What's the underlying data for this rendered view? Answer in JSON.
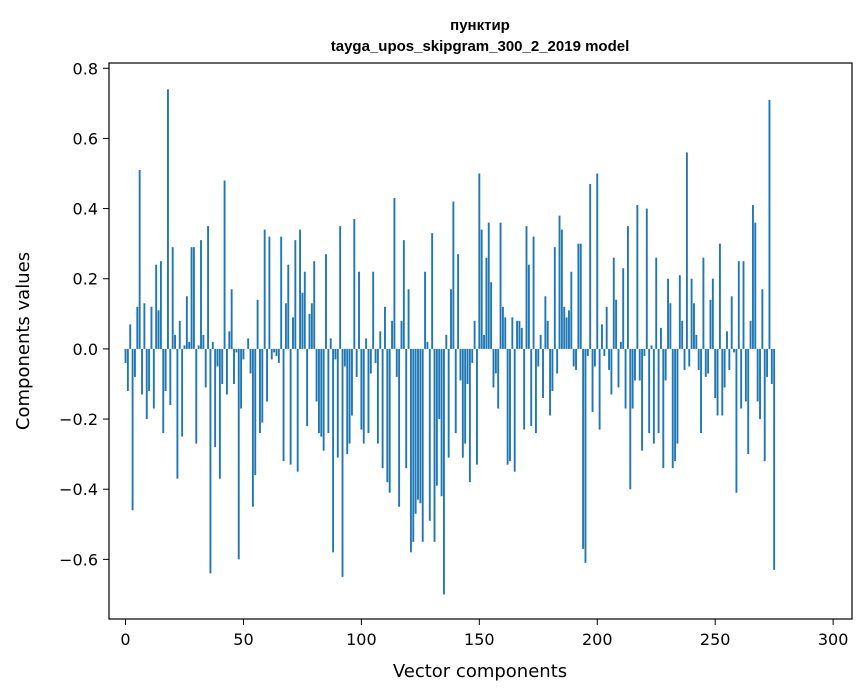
{
  "chart_data": {
    "type": "bar",
    "title": "пунктир",
    "subtitle": "tayga_upos_skipgram_300_2_2019 model",
    "xlabel": "Vector components",
    "ylabel": "Components values",
    "xlim": [
      -7,
      308
    ],
    "ylim": [
      -0.77,
      0.815
    ],
    "xticks": [
      0,
      50,
      100,
      150,
      200,
      250,
      300
    ],
    "xtick_labels": [
      "0",
      "50",
      "100",
      "150",
      "200",
      "250",
      "300"
    ],
    "yticks": [
      -0.6,
      -0.4,
      -0.2,
      0.0,
      0.2,
      0.4,
      0.6,
      0.8
    ],
    "ytick_labels": [
      "−0.6",
      "−0.4",
      "−0.2",
      "0.0",
      "0.2",
      "0.4",
      "0.6",
      "0.8"
    ],
    "grid": false,
    "bar_color": "#1f77b4",
    "values": [
      -0.04,
      -0.12,
      0.07,
      -0.46,
      -0.08,
      0.12,
      0.51,
      -0.13,
      0.13,
      -0.2,
      -0.12,
      0.12,
      -0.17,
      0.24,
      0.11,
      0.25,
      -0.24,
      -0.12,
      0.74,
      -0.16,
      0.29,
      0.04,
      -0.37,
      0.08,
      -0.25,
      0.01,
      0.15,
      0.02,
      0.29,
      0.29,
      -0.27,
      0.01,
      0.31,
      0.04,
      -0.11,
      0.35,
      -0.64,
      0.02,
      -0.28,
      -0.05,
      -0.37,
      -0.1,
      0.48,
      -0.13,
      0.05,
      0.17,
      -0.1,
      -0.01,
      -0.6,
      -0.17,
      -0.03,
      0.0,
      0.03,
      -0.07,
      -0.45,
      -0.36,
      0.14,
      -0.24,
      -0.21,
      0.34,
      -0.15,
      0.32,
      -0.03,
      -0.01,
      -0.02,
      -0.04,
      0.32,
      -0.32,
      0.13,
      0.24,
      -0.33,
      0.09,
      0.31,
      -0.35,
      0.34,
      0.16,
      0.22,
      -0.22,
      0.1,
      0.13,
      0.25,
      -0.15,
      -0.24,
      -0.25,
      -0.29,
      0.27,
      -0.24,
      0.03,
      -0.58,
      -0.03,
      -0.31,
      0.35,
      -0.65,
      -0.05,
      -0.3,
      -0.27,
      -0.19,
      0.37,
      -0.08,
      0.22,
      -0.23,
      -0.27,
      0.03,
      -0.24,
      -0.07,
      0.22,
      -0.04,
      -0.27,
      0.05,
      -0.34,
      0.12,
      -0.38,
      -0.41,
      0.08,
      0.43,
      -0.08,
      -0.45,
      0.08,
      0.31,
      -0.34,
      0.17,
      -0.58,
      -0.55,
      -0.47,
      -0.43,
      -0.44,
      -0.55,
      0.22,
      0.02,
      -0.49,
      0.33,
      -0.55,
      -0.39,
      -0.2,
      -0.42,
      -0.7,
      0.04,
      -0.31,
      0.17,
      0.42,
      -0.24,
      0.27,
      -0.09,
      -0.31,
      -0.27,
      -0.1,
      -0.38,
      -0.04,
      0.08,
      -0.33,
      0.5,
      0.34,
      0.04,
      0.26,
      0.36,
      0.19,
      -0.11,
      -0.07,
      -0.17,
      0.36,
      0.12,
      0.09,
      -0.33,
      -0.32,
      0.09,
      -0.35,
      0.08,
      0.08,
      0.06,
      -0.23,
      0.35,
      0.24,
      -0.22,
      0.32,
      -0.24,
      -0.05,
      0.04,
      -0.14,
      0.15,
      0.08,
      -0.19,
      -0.12,
      0.29,
      -0.07,
      0.38,
      0.34,
      0.12,
      0.09,
      0.11,
      0.22,
      -0.05,
      -0.06,
      0.3,
      0.3,
      -0.57,
      -0.61,
      -0.02,
      0.47,
      -0.18,
      -0.05,
      0.5,
      -0.23,
      0.07,
      -0.02,
      0.12,
      -0.06,
      -0.13,
      0.26,
      0.14,
      -0.11,
      0.02,
      0.23,
      -0.17,
      0.35,
      -0.4,
      -0.17,
      -0.09,
      0.41,
      -0.09,
      -0.29,
      -0.02,
      0.4,
      -0.24,
      0.01,
      -0.27,
      0.26,
      -0.24,
      0.06,
      -0.34,
      -0.09,
      0.2,
      0.13,
      -0.34,
      -0.32,
      -0.27,
      0.21,
      0.08,
      -0.06,
      0.56,
      -0.05,
      0.2,
      0.13,
      0.04,
      -0.06,
      -0.24,
      0.26,
      -0.08,
      -0.07,
      0.14,
      0.2,
      -0.14,
      -0.19,
      0.3,
      -0.19,
      -0.11,
      0.05,
      -0.06,
      0.15,
      -0.01,
      -0.41,
      0.25,
      -0.17,
      0.25,
      -0.15,
      -0.3,
      0.08,
      0.41,
      0.36,
      -0.15,
      -0.2,
      0.17,
      -0.32,
      -0.08,
      0.71,
      -0.1,
      -0.63
    ]
  }
}
